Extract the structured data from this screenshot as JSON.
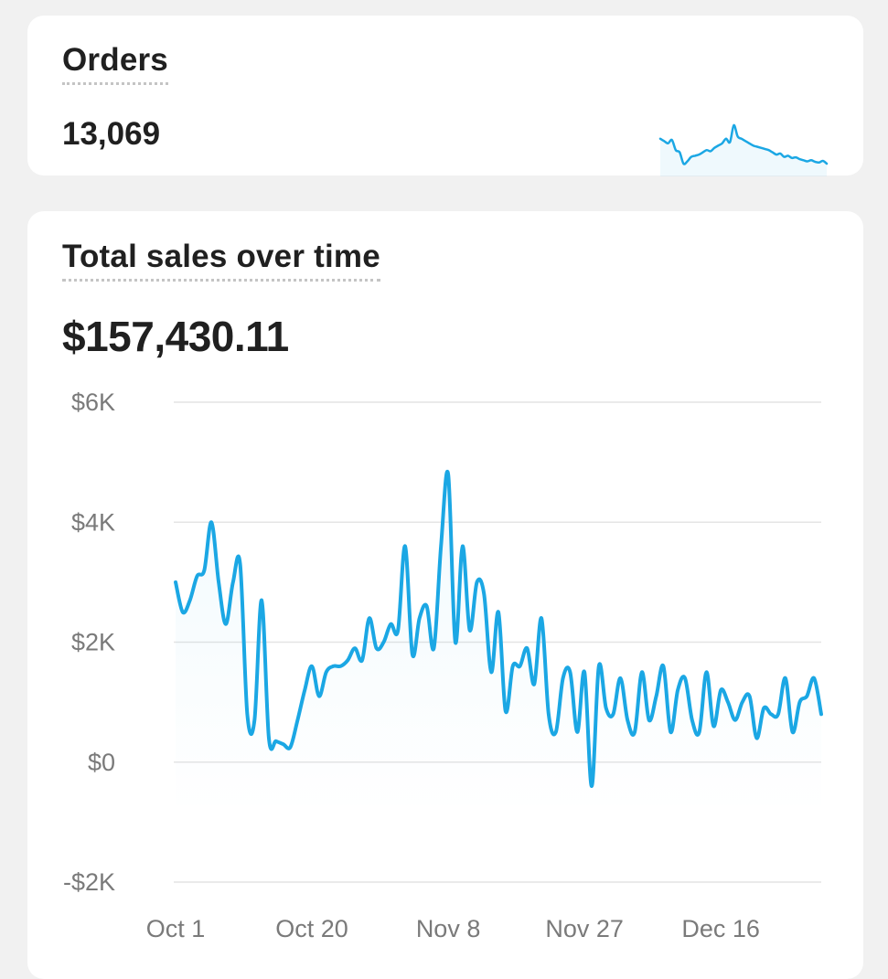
{
  "orders_card": {
    "title": "Orders",
    "value": "13,069"
  },
  "sales_card": {
    "title": "Total sales over time",
    "value": "$157,430.11"
  },
  "colors": {
    "line": "#1ba7e4",
    "grid": "#e4e4e4",
    "axis_text": "#7a7a7a"
  },
  "chart_data": [
    {
      "type": "line",
      "title": "Orders",
      "x": [
        "Oct 1",
        "Oct 3",
        "Oct 5",
        "Oct 7",
        "Oct 9",
        "Oct 11",
        "Oct 13",
        "Oct 15",
        "Oct 17",
        "Oct 19",
        "Oct 21",
        "Oct 23",
        "Oct 25",
        "Oct 27",
        "Oct 29",
        "Oct 31",
        "Nov 2",
        "Nov 4",
        "Nov 6",
        "Nov 8",
        "Nov 10",
        "Nov 12",
        "Nov 14",
        "Nov 16",
        "Nov 18",
        "Nov 20",
        "Nov 22",
        "Nov 24",
        "Nov 26",
        "Nov 28",
        "Nov 30",
        "Dec 2",
        "Dec 4",
        "Dec 6",
        "Dec 8",
        "Dec 10",
        "Dec 12",
        "Dec 14",
        "Dec 16",
        "Dec 18",
        "Dec 20",
        "Dec 22",
        "Dec 24",
        "Dec 26"
      ],
      "values": [
        260,
        250,
        240,
        255,
        210,
        200,
        150,
        160,
        180,
        185,
        190,
        200,
        210,
        205,
        220,
        230,
        240,
        260,
        245,
        320,
        270,
        260,
        250,
        240,
        230,
        225,
        220,
        215,
        210,
        200,
        190,
        195,
        180,
        185,
        175,
        178,
        170,
        165,
        160,
        165,
        158,
        155,
        162,
        150
      ]
    },
    {
      "type": "line",
      "title": "Total sales over time",
      "value_label": "$157,430.11",
      "ylim": [
        -2000,
        6000
      ],
      "yticks": [
        6000,
        4000,
        2000,
        0,
        -2000
      ],
      "ytick_labels": [
        "$6K",
        "$4K",
        "$2K",
        "$0",
        "-$2K"
      ],
      "xtick_labels": [
        "Oct 1",
        "Oct 20",
        "Nov 8",
        "Nov 27",
        "Dec 16"
      ],
      "grid": true,
      "x": [
        "Oct 1",
        "Oct 2",
        "Oct 3",
        "Oct 4",
        "Oct 5",
        "Oct 6",
        "Oct 7",
        "Oct 8",
        "Oct 9",
        "Oct 10",
        "Oct 11",
        "Oct 12",
        "Oct 13",
        "Oct 14",
        "Oct 15",
        "Oct 16",
        "Oct 17",
        "Oct 18",
        "Oct 19",
        "Oct 20",
        "Oct 21",
        "Oct 22",
        "Oct 23",
        "Oct 24",
        "Oct 25",
        "Oct 26",
        "Oct 27",
        "Oct 28",
        "Oct 29",
        "Oct 30",
        "Oct 31",
        "Nov 1",
        "Nov 2",
        "Nov 3",
        "Nov 4",
        "Nov 5",
        "Nov 6",
        "Nov 7",
        "Nov 8",
        "Nov 9",
        "Nov 10",
        "Nov 11",
        "Nov 12",
        "Nov 13",
        "Nov 14",
        "Nov 15",
        "Nov 16",
        "Nov 17",
        "Nov 18",
        "Nov 19",
        "Nov 20",
        "Nov 21",
        "Nov 22",
        "Nov 23",
        "Nov 24",
        "Nov 25",
        "Nov 26",
        "Nov 27",
        "Nov 28",
        "Nov 29",
        "Nov 30",
        "Dec 1",
        "Dec 2",
        "Dec 3",
        "Dec 4",
        "Dec 5",
        "Dec 6",
        "Dec 7",
        "Dec 8",
        "Dec 9",
        "Dec 10",
        "Dec 11",
        "Dec 12",
        "Dec 13",
        "Dec 14",
        "Dec 15",
        "Dec 16",
        "Dec 17",
        "Dec 18",
        "Dec 19",
        "Dec 20",
        "Dec 21",
        "Dec 22",
        "Dec 23",
        "Dec 24",
        "Dec 25",
        "Dec 26",
        "Dec 27",
        "Dec 28",
        "Dec 29",
        "Dec 30"
      ],
      "values": [
        3000,
        2500,
        2700,
        3100,
        3200,
        4000,
        3000,
        2300,
        3000,
        3300,
        800,
        700,
        2700,
        400,
        350,
        300,
        250,
        700,
        1200,
        1600,
        1100,
        1500,
        1600,
        1600,
        1700,
        1900,
        1700,
        2400,
        1900,
        2000,
        2300,
        2200,
        3600,
        1800,
        2400,
        2600,
        1900,
        3600,
        4800,
        2000,
        3600,
        2200,
        3000,
        2800,
        1500,
        2500,
        850,
        1600,
        1600,
        1900,
        1300,
        2400,
        800,
        500,
        1400,
        1500,
        500,
        1500,
        -400,
        1600,
        900,
        800,
        1400,
        700,
        500,
        1500,
        700,
        1100,
        1600,
        500,
        1200,
        1400,
        700,
        500,
        1500,
        600,
        1200,
        1000,
        700,
        1000,
        1100,
        400,
        900,
        800,
        800,
        1400,
        500,
        1000,
        1100,
        1400,
        800
      ]
    }
  ]
}
